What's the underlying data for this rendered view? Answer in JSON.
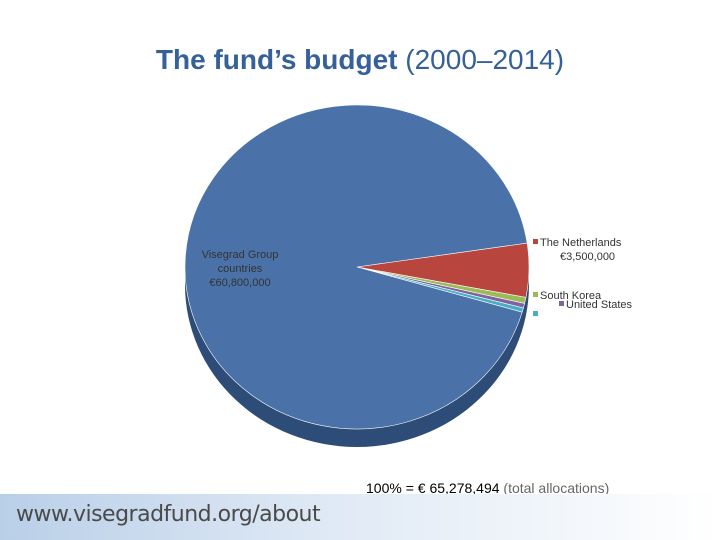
{
  "chart_data": {
    "type": "pie",
    "title": "The fund’s budget",
    "subtitle": "(2000–2014)",
    "categories": [
      "The Netherlands",
      "South Korea",
      "United States",
      null,
      "Visegrad Group countries"
    ],
    "values": [
      3500000,
      400000,
      300000,
      278494,
      60800000
    ],
    "value_labels": [
      "€3,500,000",
      null,
      null,
      null,
      "€60,800,000"
    ],
    "colors": [
      "#b8463f",
      "#9bbb59",
      "#8064a2",
      "#4bacc6",
      "#4a72a8"
    ],
    "total_note": [
      "100% =",
      "€ 65,278,494",
      "(total allocations)"
    ]
  },
  "footer": {
    "url": "www.visegradfund.org/about"
  }
}
